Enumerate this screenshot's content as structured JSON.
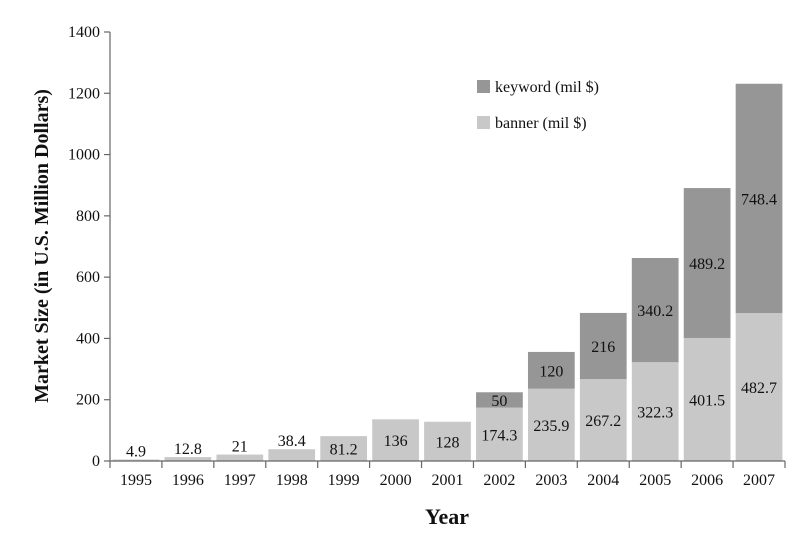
{
  "chart_data": {
    "type": "bar",
    "stacked": true,
    "title": "",
    "xlabel": "Year",
    "ylabel": "Market Size (in U.S. Million Dollars)",
    "ylim": [
      0,
      1400
    ],
    "yticks": [
      "0",
      "200",
      "400",
      "600",
      "800",
      "1000",
      "1200",
      "1400"
    ],
    "grid": false,
    "legend": "top-right",
    "categories": [
      "1995",
      "1996",
      "1997",
      "1998",
      "1999",
      "2000",
      "2001",
      "2002",
      "2003",
      "2004",
      "2005",
      "2006",
      "2007"
    ],
    "series": [
      {
        "name": "banner (mil $)",
        "color": "#c8c8c8",
        "values": [
          4.9,
          12.8,
          21,
          38.4,
          81.2,
          136,
          128,
          174.3,
          235.9,
          267.2,
          322.3,
          401.5,
          482.7
        ],
        "labels": [
          "4.9",
          "12.8",
          "21",
          "38.4",
          "81.2",
          "136",
          "128",
          "174.3",
          "235.9",
          "267.2",
          "322.3",
          "401.5",
          "482.7"
        ]
      },
      {
        "name": "keyword (mil $)",
        "color": "#969696",
        "values": [
          0,
          0,
          0,
          0,
          0,
          0,
          0,
          50,
          120,
          216,
          340.2,
          489.2,
          748.4
        ],
        "labels": [
          "",
          "",
          "",
          "",
          "",
          "",
          "",
          "50",
          "120",
          "216",
          "340.2",
          "489.2",
          "748.4"
        ]
      }
    ]
  }
}
